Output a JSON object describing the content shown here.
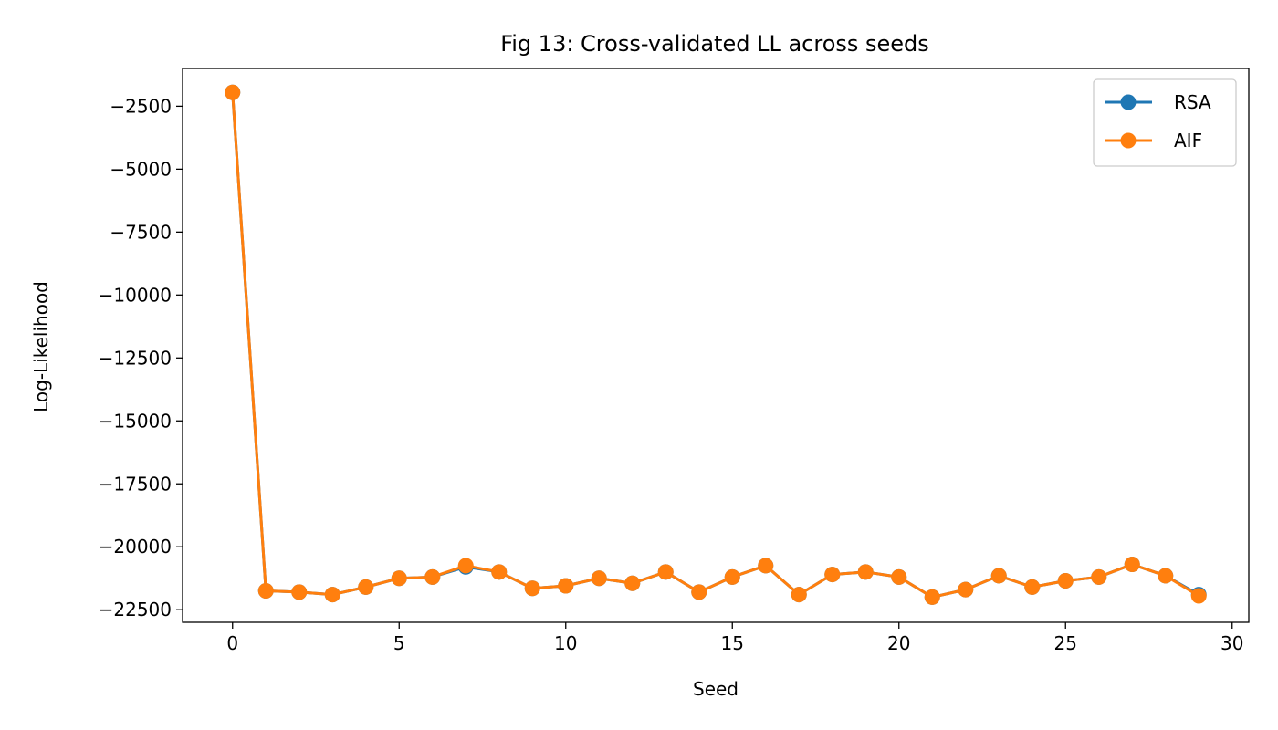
{
  "chart_data": {
    "type": "line",
    "title": "Fig 13: Cross-validated LL across seeds",
    "xlabel": "Seed",
    "ylabel": "Log-Likelihood",
    "xlim": [
      -1.5,
      30.5
    ],
    "ylim": [
      -23000,
      -1000
    ],
    "xticks": [
      0,
      5,
      10,
      15,
      20,
      25,
      30
    ],
    "yticks": [
      -2500,
      -5000,
      -7500,
      -10000,
      -12500,
      -15000,
      -17500,
      -20000,
      -22500
    ],
    "xtick_labels": [
      "0",
      "5",
      "10",
      "15",
      "20",
      "25",
      "30"
    ],
    "ytick_labels": [
      "−2500",
      "−5000",
      "−7500",
      "−10000",
      "−12500",
      "−15000",
      "−17500",
      "−20000",
      "−22500"
    ],
    "grid": false,
    "legend_position": "top-right",
    "x": [
      0,
      1,
      2,
      3,
      4,
      5,
      6,
      7,
      8,
      9,
      10,
      11,
      12,
      13,
      14,
      15,
      16,
      17,
      18,
      19,
      20,
      21,
      22,
      23,
      24,
      25,
      26,
      27,
      28,
      29
    ],
    "series": [
      {
        "name": "RSA",
        "color": "#1f77b4",
        "marker": "circle",
        "values": [
          -1950,
          -21750,
          -21800,
          -21900,
          -21600,
          -21250,
          -21200,
          -20800,
          -21000,
          -21650,
          -21550,
          -21250,
          -21450,
          -21000,
          -21800,
          -21200,
          -20750,
          -21900,
          -21100,
          -21000,
          -21200,
          -22000,
          -21700,
          -21150,
          -21600,
          -21350,
          -21200,
          -20700,
          -21150,
          -21900
        ]
      },
      {
        "name": "AIF",
        "color": "#ff7f0e",
        "marker": "circle",
        "values": [
          -1950,
          -21750,
          -21800,
          -21900,
          -21600,
          -21250,
          -21200,
          -20750,
          -21000,
          -21650,
          -21550,
          -21250,
          -21450,
          -21000,
          -21800,
          -21200,
          -20750,
          -21900,
          -21100,
          -21000,
          -21200,
          -22000,
          -21700,
          -21150,
          -21600,
          -21350,
          -21200,
          -20700,
          -21150,
          -21950
        ]
      }
    ]
  }
}
